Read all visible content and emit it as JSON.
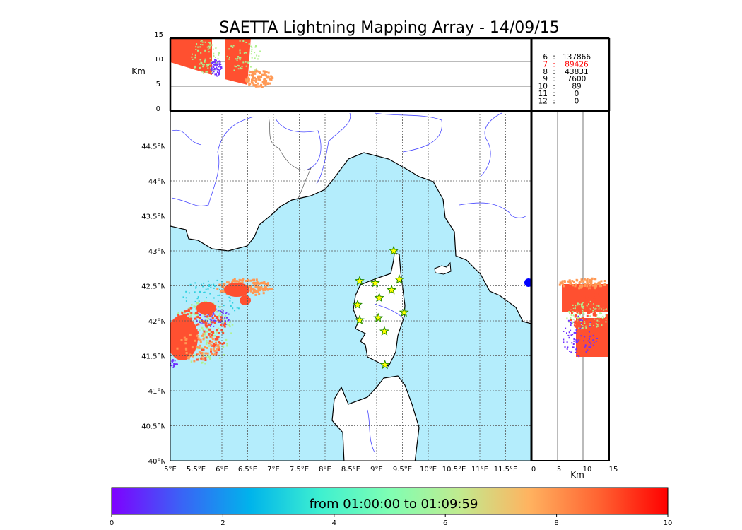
{
  "title": "SAETTA Lightning Mapping Array - 14/09/15",
  "altitude_panel": {
    "ylabel": "Km",
    "yticks": [
      "0",
      "5",
      "10",
      "15"
    ]
  },
  "side_panel": {
    "xlabel": "Km",
    "xticks": [
      "0",
      "5",
      "10",
      "15"
    ]
  },
  "stats": [
    {
      "label": "6",
      "value": "137866",
      "highlight": false
    },
    {
      "label": "7",
      "value": "89426",
      "highlight": true
    },
    {
      "label": "8",
      "value": "43831",
      "highlight": false
    },
    {
      "label": "9",
      "value": "7600",
      "highlight": false
    },
    {
      "label": "10",
      "value": "89",
      "highlight": false
    },
    {
      "label": "11",
      "value": "0",
      "highlight": false
    },
    {
      "label": "12",
      "value": "0",
      "highlight": false
    }
  ],
  "map": {
    "lon_ticks": [
      "5°E",
      "5.5°E",
      "6°E",
      "6.5°E",
      "7°E",
      "7.5°E",
      "8°E",
      "8.5°E",
      "9°E",
      "9.5°E",
      "10°E",
      "10.5°E",
      "11°E",
      "11.5°E"
    ],
    "lat_ticks": [
      "40°N",
      "40.5°N",
      "41°N",
      "41.5°N",
      "42°N",
      "42.5°N",
      "43°N",
      "43.5°N",
      "44°N",
      "44.5°N"
    ],
    "stations": [
      [
        9.33,
        43.0
      ],
      [
        8.67,
        42.57
      ],
      [
        8.97,
        42.54
      ],
      [
        9.44,
        42.59
      ],
      [
        9.29,
        42.44
      ],
      [
        9.05,
        42.33
      ],
      [
        8.63,
        42.23
      ],
      [
        9.53,
        42.12
      ],
      [
        9.03,
        42.04
      ],
      [
        8.67,
        42.01
      ],
      [
        9.15,
        41.85
      ],
      [
        9.16,
        41.37
      ]
    ]
  },
  "colorbar": {
    "label": "from 01:00:00 to 01:09:59",
    "ticks": [
      "0",
      "2",
      "4",
      "6",
      "8",
      "10"
    ],
    "colors": [
      "#7f00ff",
      "#3a63f6",
      "#00b4eb",
      "#3ef0d0",
      "#7ffeb3",
      "#c0eb8f",
      "#ffb360",
      "#ff6432",
      "#ff0000"
    ]
  },
  "colors": {
    "sea": "#b4edfc",
    "flash_main": "#ff5030",
    "flash_light": "#ff9955",
    "flash_green": "#b0f090",
    "flash_purple": "#7030ff",
    "flash_cyan": "#30d0e0",
    "rivers": "#4848ff"
  }
}
